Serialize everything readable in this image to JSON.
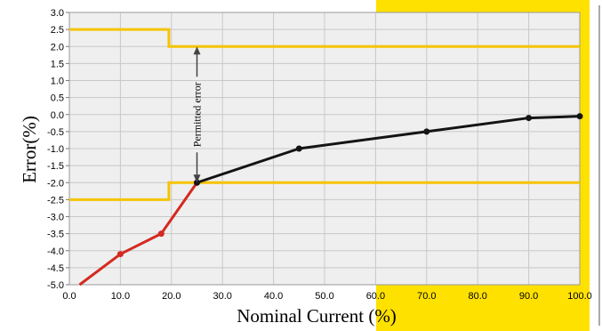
{
  "chart_data": {
    "type": "line",
    "xlabel": "Nominal Current (%)",
    "ylabel": "Error(%)",
    "xlim": [
      0,
      100
    ],
    "ylim": [
      -5.0,
      3.0
    ],
    "x_ticks": [
      "0.0",
      "10.0",
      "20.0",
      "30.0",
      "40.0",
      "50.0",
      "60.0",
      "70.0",
      "80.0",
      "90.0",
      "100.0"
    ],
    "y_ticks": [
      "3.0",
      "2.5",
      "2.0",
      "1.5",
      "1.0",
      "0.5",
      "0.0",
      "-0.5",
      "-1.0",
      "-1.5",
      "-2.0",
      "-2.5",
      "-3.0",
      "-3.5",
      "-4.0",
      "-4.5",
      "-5.0"
    ],
    "grid": true,
    "series": [
      {
        "color": "#d42a20",
        "points": [
          [
            2,
            -5.0
          ],
          [
            10,
            -4.1
          ],
          [
            18,
            -3.5
          ],
          [
            25,
            -2.0
          ]
        ]
      },
      {
        "color": "#141414",
        "points": [
          [
            25,
            -2.0
          ],
          [
            45,
            -1.0
          ],
          [
            70,
            -0.5
          ],
          [
            90,
            -0.1
          ],
          [
            100,
            -0.05
          ]
        ]
      }
    ],
    "limits": [
      {
        "color": "#f5c400",
        "points": [
          [
            0,
            2.5
          ],
          [
            19.5,
            2.5
          ],
          [
            19.5,
            2.0
          ],
          [
            100,
            2.0
          ]
        ]
      },
      {
        "color": "#f5c400",
        "points": [
          [
            0,
            -2.5
          ],
          [
            19.5,
            -2.5
          ],
          [
            19.5,
            -2.0
          ],
          [
            100,
            -2.0
          ]
        ]
      }
    ],
    "annotations": [
      {
        "text": "Permitted error",
        "x": 25,
        "y_top": 2.0,
        "y_bottom": -2.0
      }
    ],
    "highlight_color": "#ffe100"
  }
}
